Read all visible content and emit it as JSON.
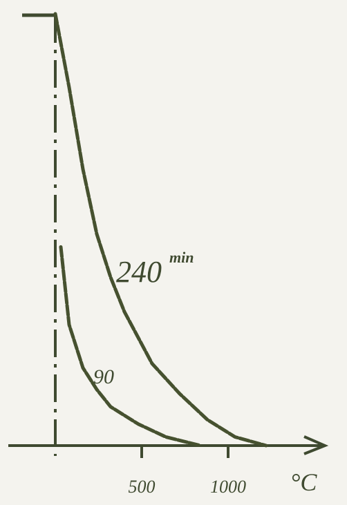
{
  "chart_data": {
    "type": "line",
    "x_label": "°C",
    "unit_label": "min",
    "xlim": [
      -260,
      1560
    ],
    "ylim": [
      0,
      1
    ],
    "xticks": [
      500,
      1000
    ],
    "color": "#46512f",
    "series": [
      {
        "name": "240",
        "x": [
          0,
          80,
          160,
          240,
          320,
          400,
          560,
          720,
          880,
          1040,
          1220
        ],
        "values": [
          1.0,
          0.83,
          0.64,
          0.49,
          0.39,
          0.31,
          0.19,
          0.12,
          0.06,
          0.02,
          0
        ]
      },
      {
        "name": "90",
        "x": [
          32,
          80,
          160,
          240,
          320,
          480,
          640,
          840
        ],
        "values": [
          0.46,
          0.28,
          0.18,
          0.13,
          0.09,
          0.05,
          0.02,
          0
        ]
      }
    ]
  }
}
